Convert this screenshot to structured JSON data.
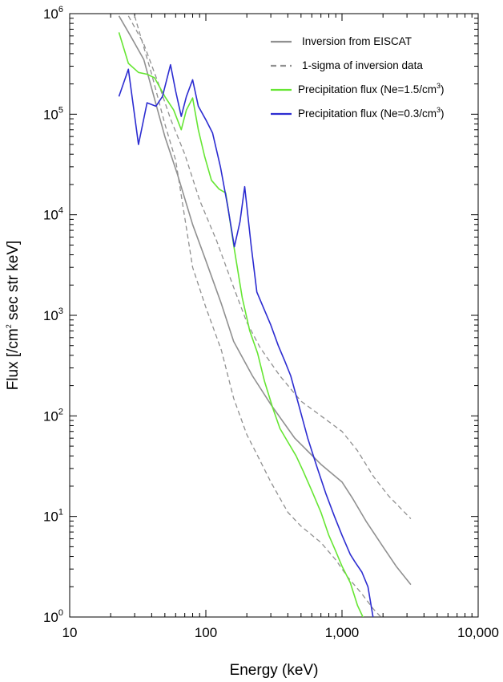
{
  "chart_data": {
    "type": "line",
    "xlabel": "Energy (keV)",
    "ylabel": {
      "pre": "Flux  [/cm",
      "sup": "2",
      "post": " sec str keV]"
    },
    "x_scale": "log",
    "y_scale": "log",
    "xlim": [
      10,
      10000
    ],
    "ylim": [
      1,
      1000000
    ],
    "x_ticks": [
      {
        "value": 10,
        "label": "10"
      },
      {
        "value": 100,
        "label": "100"
      },
      {
        "value": 1000,
        "label": "1,000"
      },
      {
        "value": 10000,
        "label": "10,000"
      }
    ],
    "y_ticks": [
      {
        "value": 1,
        "base": "10",
        "exp": "0"
      },
      {
        "value": 10,
        "base": "10",
        "exp": "1"
      },
      {
        "value": 100,
        "base": "10",
        "exp": "2"
      },
      {
        "value": 1000,
        "base": "10",
        "exp": "3"
      },
      {
        "value": 10000,
        "base": "10",
        "exp": "4"
      },
      {
        "value": 100000,
        "base": "10",
        "exp": "5"
      },
      {
        "value": 1000000,
        "base": "10",
        "exp": "6"
      }
    ],
    "grid": false,
    "legend_position": "top-right",
    "series": [
      {
        "name": "Inversion from EISCAT",
        "color": "#909090",
        "style": "solid",
        "x": [
          23,
          28,
          35,
          40,
          50,
          62,
          80,
          100,
          130,
          160,
          220,
          300,
          450,
          700,
          1000,
          1200,
          1500,
          2000,
          2500,
          3200
        ],
        "y": [
          950000,
          600000,
          350000,
          180000,
          60000,
          25000,
          8000,
          3500,
          1300,
          550,
          250,
          130,
          60,
          33,
          22,
          15,
          9,
          5,
          3.2,
          2.1
        ]
      },
      {
        "name": "1-sigma of inversion data",
        "color": "#909090",
        "style": "dashed",
        "x": [
          27,
          35,
          45,
          55,
          70,
          90,
          120,
          160,
          200,
          250,
          350,
          500,
          700,
          1000,
          1300,
          1700,
          2200,
          3200
        ],
        "y": [
          950000,
          500000,
          200000,
          90000,
          40000,
          14000,
          5500,
          1900,
          850,
          480,
          250,
          140,
          100,
          70,
          45,
          25,
          16,
          9.5
        ]
      },
      {
        "name": "",
        "color": "#909090",
        "style": "dashed",
        "x": [
          30,
          40,
          50,
          60,
          80,
          100,
          130,
          160,
          200,
          230,
          300,
          400,
          500,
          700,
          900,
          1100,
          1400,
          1700,
          2000
        ],
        "y": [
          950000,
          250000,
          80000,
          35000,
          3000,
          1200,
          450,
          150,
          65,
          45,
          22,
          11,
          8,
          5.5,
          3.7,
          2.5,
          1.7,
          1.2,
          0.95
        ]
      },
      {
        "name": "Precipitation flux (Ne=1.5/cm3)",
        "label": {
          "pre": "Precipitation flux (Ne=1.5/cm",
          "sup": "3",
          "post": ")"
        },
        "color": "#66e633",
        "style": "solid",
        "x": [
          23,
          27,
          32,
          37,
          42,
          50,
          58,
          66,
          72,
          80,
          88,
          98,
          110,
          125,
          140,
          160,
          185,
          210,
          240,
          270,
          310,
          350,
          400,
          460,
          520,
          600,
          700,
          800,
          900,
          1000,
          1150,
          1300,
          1450
        ],
        "y": [
          650000,
          320000,
          260000,
          250000,
          230000,
          150000,
          110000,
          70000,
          110000,
          145000,
          70000,
          38000,
          22000,
          18000,
          16500,
          5000,
          1500,
          700,
          420,
          220,
          120,
          75,
          55,
          40,
          28,
          18,
          11,
          6.5,
          4.5,
          3.2,
          2.2,
          1.3,
          0.95
        ]
      },
      {
        "name": "Precipitation flux (Ne=0.3/cm3)",
        "label": {
          "pre": "Precipitation flux (Ne=0.3/cm",
          "sup": "3",
          "post": ")"
        },
        "color": "#2c2cd1",
        "style": "solid",
        "x": [
          23,
          27,
          32,
          37,
          43,
          48,
          55,
          60,
          66,
          72,
          80,
          88,
          100,
          112,
          128,
          145,
          162,
          178,
          193,
          215,
          237,
          300,
          340,
          380,
          420,
          480,
          560,
          650,
          760,
          880,
          1000,
          1150,
          1250,
          1400,
          1550,
          1700
        ],
        "y": [
          150000,
          280000,
          50000,
          130000,
          120000,
          150000,
          310000,
          170000,
          95000,
          150000,
          220000,
          120000,
          88000,
          65000,
          30000,
          12000,
          4800,
          8500,
          19000,
          5000,
          1700,
          800,
          500,
          350,
          250,
          130,
          60,
          32,
          17,
          10,
          6.5,
          4.2,
          3.5,
          2.8,
          2,
          0.95
        ]
      }
    ]
  }
}
